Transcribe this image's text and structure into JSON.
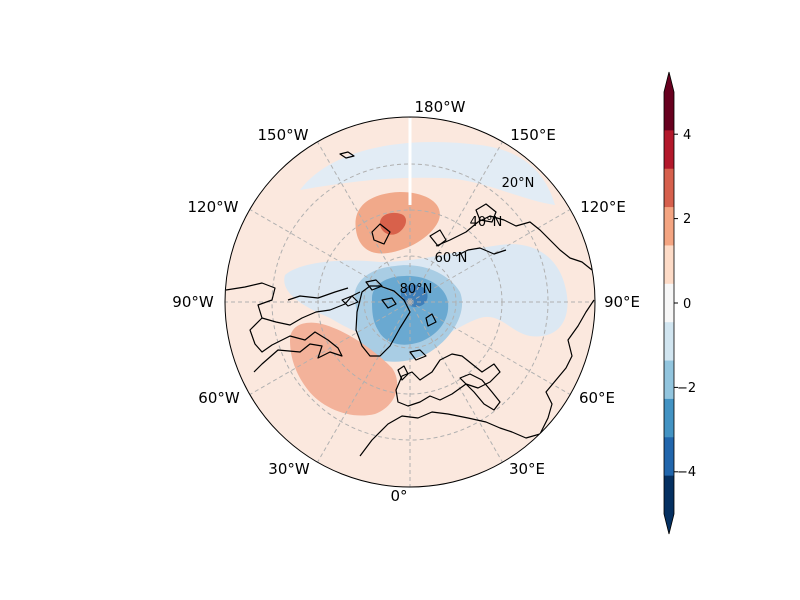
{
  "map": {
    "projection": "north-polar-stereographic",
    "grid": true,
    "lon_labels": {
      "lon_180": "180°W",
      "lon_150w": "150°W",
      "lon_150e": "150°E",
      "lon_120w": "120°W",
      "lon_120e": "120°E",
      "lon_90w": "90°W",
      "lon_90e": "90°E",
      "lon_60w": "60°W",
      "lon_60e": "60°E",
      "lon_30w": "30°W",
      "lon_30e": "30°E",
      "lon_0": "0°"
    },
    "lat_labels": {
      "lat_20": "20°N",
      "lat_40": "40°N",
      "lat_60": "60°N",
      "lat_80": "80°N"
    }
  },
  "colorbar": {
    "ticks": [
      "4",
      "2",
      "0",
      "−2",
      "−4"
    ],
    "extend": "both",
    "colors": [
      "#67001f",
      "#b2182b",
      "#d6604d",
      "#f4a582",
      "#fddbc7",
      "#f7f7f7",
      "#d1e5f0",
      "#92c5de",
      "#4393c3",
      "#2166ac",
      "#053061"
    ]
  },
  "chart_data": {
    "type": "heatmap",
    "colorbar_range": [
      -5,
      5
    ],
    "colorbar_levels": [
      -5,
      -4,
      -3,
      -2,
      -1,
      0,
      1,
      2,
      3,
      4,
      5
    ],
    "features": [
      {
        "region": "North Pole / Arctic Ocean",
        "sign": "negative",
        "min_value": -4
      },
      {
        "region": "Bering Strait / East Siberia",
        "sign": "positive",
        "max_value": 3
      },
      {
        "region": "North Atlantic (east of Newfoundland)",
        "sign": "positive",
        "max_value": 2
      },
      {
        "region": "Eurasia / Siberia",
        "sign": "negative",
        "min_value": -1
      }
    ]
  }
}
